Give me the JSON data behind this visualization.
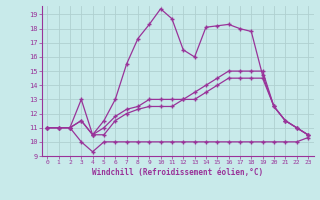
{
  "background_color": "#c8eaea",
  "grid_color": "#b0d0d0",
  "line_color": "#993399",
  "xlabel": "Windchill (Refroidissement éolien,°C)",
  "xlim": [
    -0.5,
    23.5
  ],
  "ylim": [
    9,
    19.6
  ],
  "yticks": [
    9,
    10,
    11,
    12,
    13,
    14,
    15,
    16,
    17,
    18,
    19
  ],
  "xticks": [
    0,
    1,
    2,
    3,
    4,
    5,
    6,
    7,
    8,
    9,
    10,
    11,
    12,
    13,
    14,
    15,
    16,
    17,
    18,
    19,
    20,
    21,
    22,
    23
  ],
  "series": [
    [
      11,
      11,
      11,
      10,
      9.3,
      10,
      10,
      10,
      10,
      10,
      10,
      10,
      10,
      10,
      10,
      10,
      10,
      10,
      10,
      10,
      10,
      10,
      10,
      10.3
    ],
    [
      11,
      11,
      11,
      11.5,
      10.5,
      10.5,
      11.5,
      12.0,
      12.3,
      12.5,
      12.5,
      12.5,
      13.0,
      13.0,
      13.5,
      14.0,
      14.5,
      14.5,
      14.5,
      14.5,
      12.5,
      11.5,
      11.0,
      10.5
    ],
    [
      11,
      11,
      11,
      11.5,
      10.5,
      11.0,
      11.8,
      12.3,
      12.5,
      13.0,
      13.0,
      13.0,
      13.0,
      13.5,
      14.0,
      14.5,
      15.0,
      15.0,
      15.0,
      15.0,
      12.5,
      11.5,
      11.0,
      10.5
    ],
    [
      11,
      11,
      11,
      13.0,
      10.5,
      11.5,
      13.0,
      15.5,
      17.3,
      18.3,
      19.4,
      18.7,
      16.5,
      16.0,
      18.1,
      18.2,
      18.3,
      18.0,
      17.8,
      14.7,
      12.5,
      11.5,
      11.0,
      10.5
    ]
  ]
}
